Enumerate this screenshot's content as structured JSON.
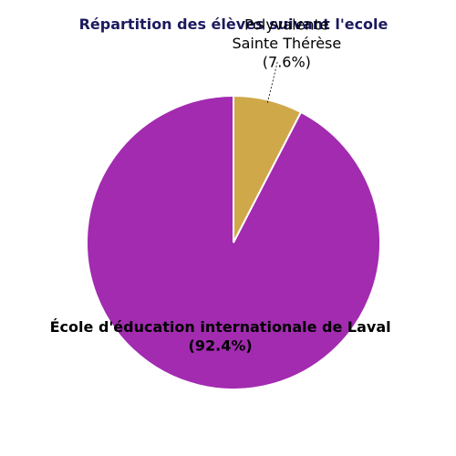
{
  "chart_data": {
    "type": "pie",
    "title": "Répartition des élèves suivant l'ecole",
    "slices": [
      {
        "name": "Polyvalente Sainte Thérèse",
        "label_lines": [
          "Polyvalente",
          "Sainte Thérèse"
        ],
        "percent_label": "(7.6%)",
        "value": 7.6,
        "color": "#cfa84a"
      },
      {
        "name": "École d'éducation internationale de Laval",
        "label_lines": [
          "École d'éducation internationale de Laval"
        ],
        "percent_label": "(92.4%)",
        "value": 92.4,
        "color": "#a22bb0"
      }
    ],
    "start": "top",
    "direction": "clockwise"
  }
}
